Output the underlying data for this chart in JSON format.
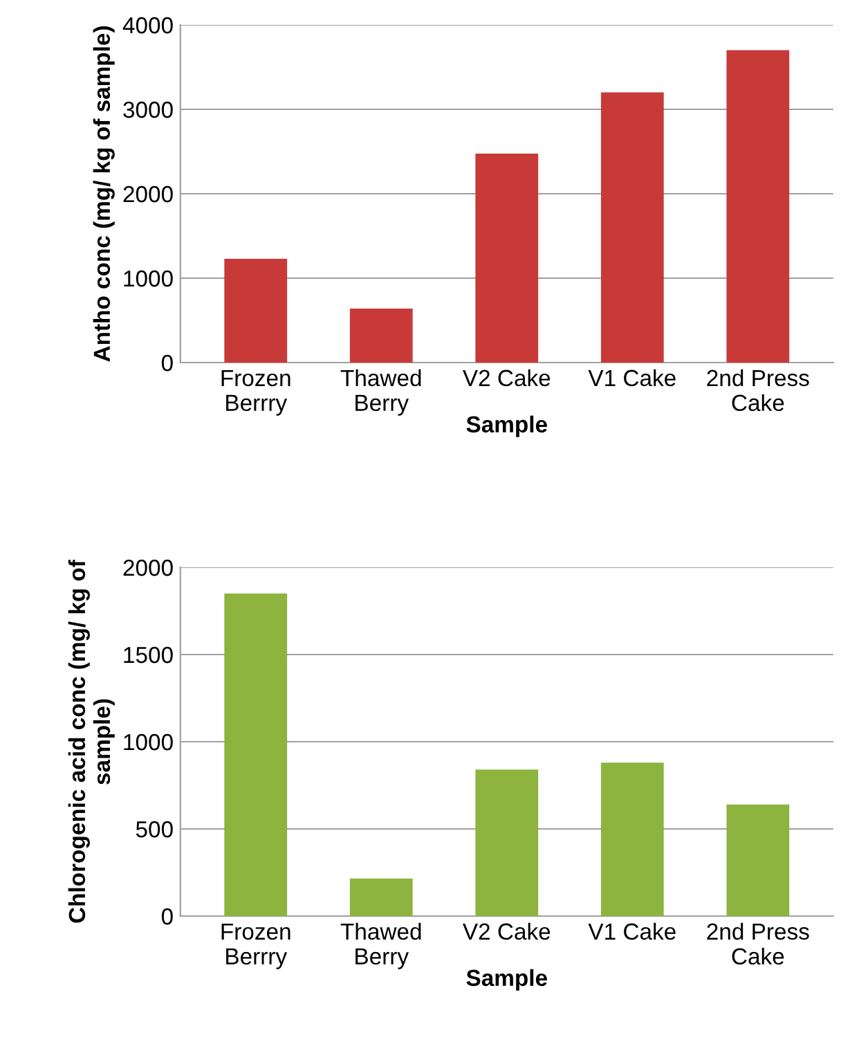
{
  "chart_data": [
    {
      "type": "bar",
      "categories": [
        "Frozen\nBerrry",
        "Thawed\nBerry",
        "V2 Cake",
        "V1 Cake",
        "2nd Press\nCake"
      ],
      "values": [
        1230,
        640,
        2475,
        3200,
        3700
      ],
      "color": "#c83a38",
      "xlabel": "Sample",
      "ylabel": "Antho conc (mg/ kg of sample)",
      "ylim": [
        0,
        4000
      ],
      "yticks": [
        0,
        1000,
        2000,
        3000,
        4000
      ],
      "grid": "y"
    },
    {
      "type": "bar",
      "categories": [
        "Frozen\nBerrry",
        "Thawed\nBerry",
        "V2 Cake",
        "V1 Cake",
        "2nd Press\nCake"
      ],
      "values": [
        1850,
        215,
        840,
        880,
        640
      ],
      "color": "#8cb43f",
      "xlabel": "Sample",
      "ylabel": "Chlorogenic acid conc (mg/ kg of\nsample)",
      "ylim": [
        0,
        2000
      ],
      "yticks": [
        0,
        500,
        1000,
        1500,
        2000
      ],
      "grid": "y"
    }
  ]
}
